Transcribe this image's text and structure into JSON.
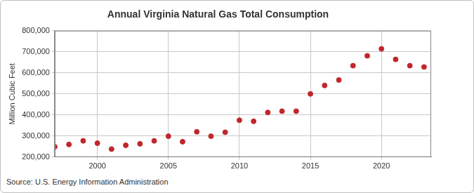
{
  "chart_data": {
    "type": "scatter",
    "title": "Annual Virginia Natural Gas Total Consumption",
    "y_label": "Million Cubic Feet",
    "source": "Source: U.S. Energy Information Administration",
    "x": [
      1997,
      1998,
      1999,
      2000,
      2001,
      2002,
      2003,
      2004,
      2005,
      2006,
      2007,
      2008,
      2009,
      2010,
      2011,
      2012,
      2013,
      2014,
      2015,
      2016,
      2017,
      2018,
      2019,
      2020,
      2021,
      2022,
      2023
    ],
    "values": [
      249000,
      260000,
      277000,
      266000,
      238000,
      256000,
      263000,
      277000,
      299000,
      273000,
      320000,
      299000,
      318000,
      375000,
      370000,
      412000,
      418000,
      418000,
      500000,
      540000,
      566000,
      634000,
      681000,
      714000,
      664000,
      634000,
      628000
    ],
    "color": "#c0272d",
    "marker": "circle",
    "xlim": [
      1997,
      2023.5
    ],
    "xticks": [
      2000,
      2005,
      2010,
      2015,
      2020
    ],
    "ylim": [
      200000,
      800000
    ],
    "yticks": [
      {
        "value": 200000,
        "label": "200,000"
      },
      {
        "value": 300000,
        "label": "300,000"
      },
      {
        "value": 400000,
        "label": "400,000"
      },
      {
        "value": 500000,
        "label": "500,000"
      },
      {
        "value": 600000,
        "label": "600,000"
      },
      {
        "value": 700000,
        "label": "700,000"
      },
      {
        "value": 800000,
        "label": "800,000"
      }
    ],
    "grid": true
  }
}
